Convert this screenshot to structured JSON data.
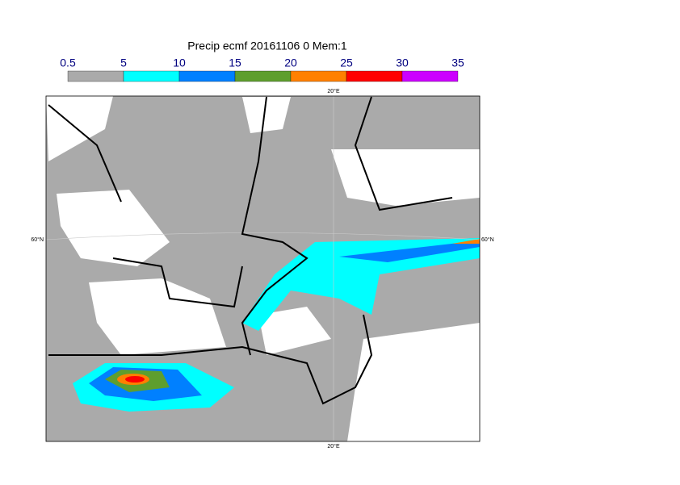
{
  "title": "Precip ecmf 20161106 0 Mem:1",
  "colorbar": {
    "ticks": [
      0.5,
      5,
      10,
      15,
      20,
      25,
      30,
      35
    ],
    "colors": [
      "#aaaaaa",
      "#00ffff",
      "#0080ff",
      "#5e9e2e",
      "#ff8000",
      "#ff0000",
      "#cc00ff"
    ]
  },
  "map": {
    "labels": {
      "top": "20°E",
      "bottom": "20°E",
      "left": "60°N",
      "right": "60°N"
    }
  }
}
